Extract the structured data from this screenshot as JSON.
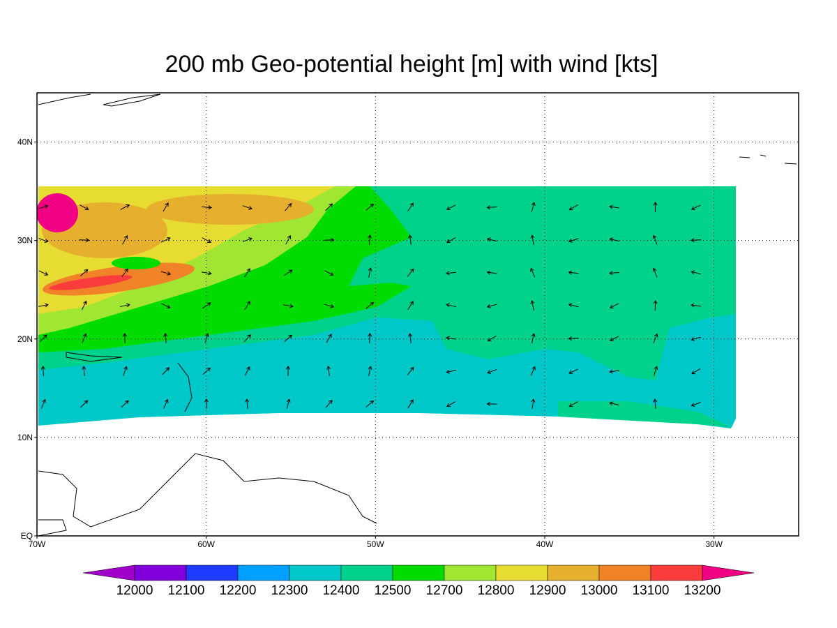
{
  "chart_data": {
    "type": "map",
    "title": "200 mb Geo-potential height [m] with wind [kts]",
    "xlim": [
      -70,
      -25
    ],
    "ylim": [
      0,
      45
    ],
    "xticks": [
      {
        "value": -70,
        "label": "70W"
      },
      {
        "value": -60,
        "label": "60W"
      },
      {
        "value": -50,
        "label": "50W"
      },
      {
        "value": -40,
        "label": "40W"
      },
      {
        "value": -30,
        "label": "30W"
      }
    ],
    "yticks": [
      {
        "value": 0,
        "label": "EQ"
      },
      {
        "value": 10,
        "label": "10N"
      },
      {
        "value": 20,
        "label": "20N"
      },
      {
        "value": 30,
        "label": "30N"
      },
      {
        "value": 40,
        "label": "40N"
      }
    ],
    "grid": true,
    "colorbar": {
      "levels": [
        12000,
        12100,
        12200,
        12300,
        12400,
        12500,
        12700,
        12800,
        12900,
        13000,
        13100,
        13200
      ],
      "colors": [
        "#a000c8",
        "#8200dc",
        "#1e3cff",
        "#00a0ff",
        "#00c8c8",
        "#00d28c",
        "#00dc00",
        "#a0e632",
        "#e6dc32",
        "#e6af2d",
        "#f08228",
        "#fa3c3c",
        "#f00082"
      ]
    }
  }
}
